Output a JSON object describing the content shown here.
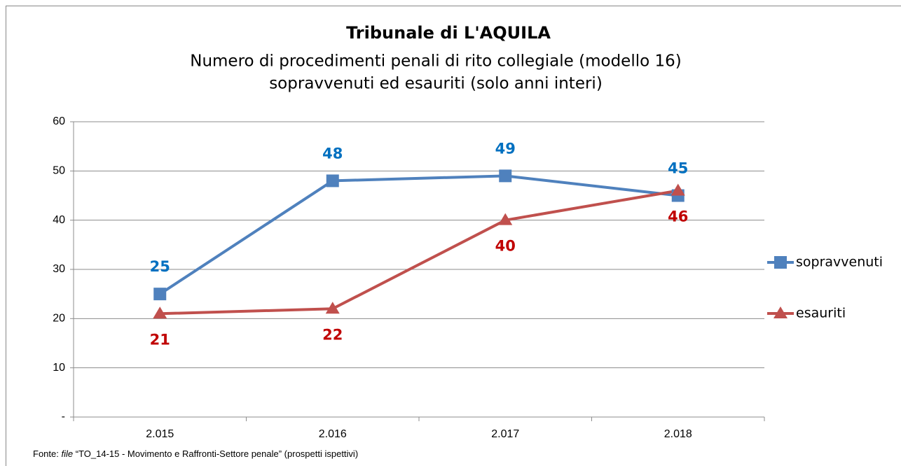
{
  "chart_data": {
    "type": "line",
    "title": "Tribunale di L'AQUILA",
    "subtitle": [
      "Numero di procedimenti penali di rito collegiale (modello 16)",
      "sopravvenuti ed esauriti (solo anni interi)"
    ],
    "categories": [
      "2.015",
      "2.016",
      "2.017",
      "2.018"
    ],
    "series": [
      {
        "name": "sopravvenuti",
        "color": "#4f81bd",
        "label_color": "#0070c0",
        "marker": "square",
        "label_position": "above",
        "values": [
          25,
          48,
          49,
          45
        ]
      },
      {
        "name": "esauriti",
        "color": "#c0504d",
        "label_color": "#c00000",
        "marker": "triangle",
        "label_position": "below",
        "values": [
          21,
          22,
          40,
          46
        ]
      }
    ],
    "ylim": [
      0,
      60
    ],
    "yticks": [
      {
        "value": 0,
        "label": "-"
      },
      10,
      20,
      30,
      40,
      50,
      60
    ],
    "grid": true,
    "legend": "right",
    "source": {
      "prefix": "Fonte:",
      "emphasis": "file",
      "text": "“TO_14-15 - Movimento e Raffronti-Settore penale” (prospetti ispettivi)"
    }
  }
}
